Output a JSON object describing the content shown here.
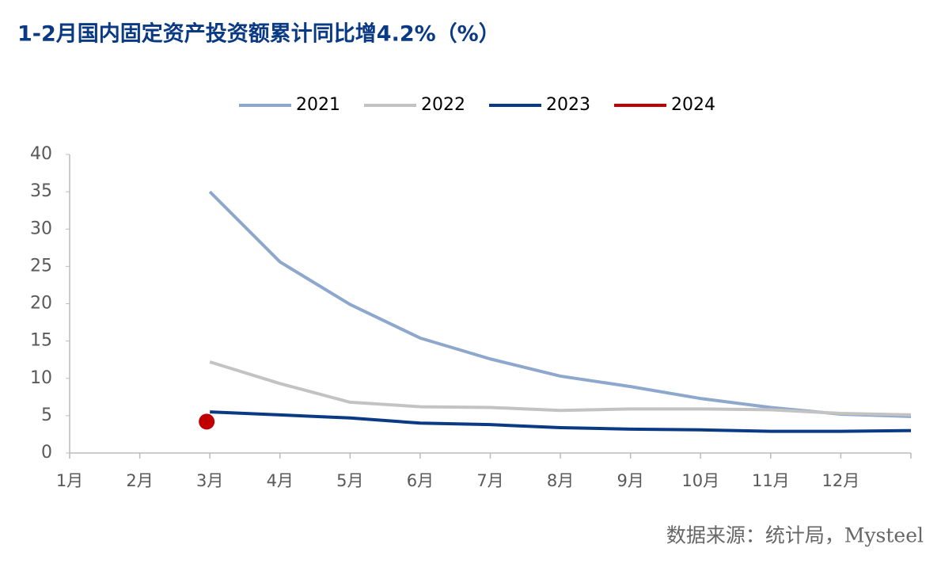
{
  "chart_data": {
    "type": "line",
    "title": "1-2月国内固定资产投资额累计同比增4.2%（%）",
    "source": "数据来源：统计局，Mysteel",
    "categories": [
      "1月",
      "2月",
      "3月",
      "4月",
      "5月",
      "6月",
      "7月",
      "8月",
      "9月",
      "10月",
      "11月",
      "12月",
      null
    ],
    "series": [
      {
        "name": "2021",
        "color": "#8ea7cc",
        "values": [
          null,
          null,
          35.0,
          25.6,
          19.9,
          15.4,
          12.6,
          10.3,
          8.9,
          7.3,
          6.1,
          5.2,
          4.9
        ]
      },
      {
        "name": "2022",
        "color": "#c3c3c3",
        "values": [
          null,
          null,
          12.2,
          9.3,
          6.8,
          6.2,
          6.1,
          5.7,
          5.9,
          5.9,
          5.8,
          5.3,
          5.1
        ]
      },
      {
        "name": "2023",
        "color": "#0b3a84",
        "values": [
          null,
          null,
          5.5,
          5.1,
          4.7,
          4.0,
          3.8,
          3.4,
          3.2,
          3.1,
          2.9,
          2.9,
          3.0
        ]
      },
      {
        "name": "2024",
        "color": "#c00000",
        "values": [
          null,
          null,
          4.2,
          null,
          null,
          null,
          null,
          null,
          null,
          null,
          null,
          null,
          null
        ]
      }
    ],
    "ylim": [
      0,
      40
    ],
    "yticks": [
      0,
      5,
      10,
      15,
      20,
      25,
      30,
      35,
      40
    ],
    "legend": "top"
  }
}
